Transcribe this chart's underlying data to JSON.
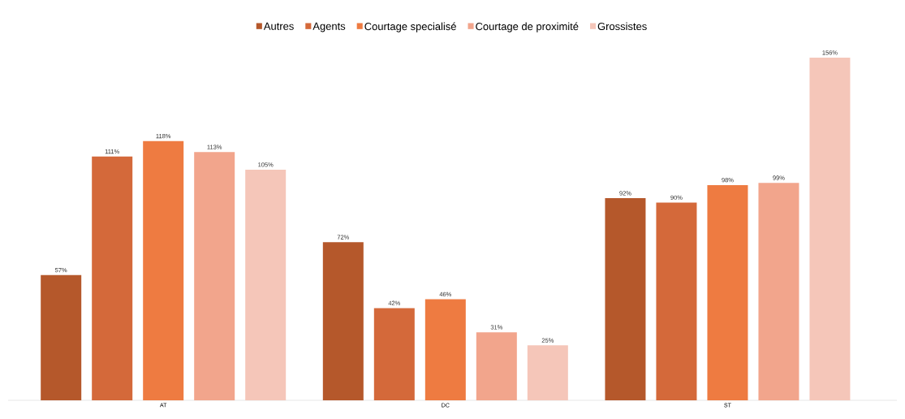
{
  "chart_data": {
    "type": "bar",
    "categories": [
      "AT",
      "DC",
      "ST"
    ],
    "legend": "top",
    "series": [
      {
        "name": "Autres",
        "color": "#b5582b",
        "values": [
          57,
          72,
          92
        ],
        "value_labels": [
          "57%",
          "72%",
          "92%"
        ]
      },
      {
        "name": "Agents",
        "color": "#d4693a",
        "values": [
          111,
          42,
          90
        ],
        "value_labels": [
          "111%",
          "42%",
          "90%"
        ]
      },
      {
        "name": "Courtage specialisé",
        "color": "#ee7b41",
        "values": [
          118,
          46,
          98
        ],
        "value_labels": [
          "118%",
          "46%",
          "98%"
        ]
      },
      {
        "name": "Courtage de proximité",
        "color": "#f2a58c",
        "values": [
          113,
          31,
          99
        ],
        "value_labels": [
          "113%",
          "31%",
          "99%"
        ]
      },
      {
        "name": "Grossistes",
        "color": "#f5c6b9",
        "values": [
          105,
          25,
          156
        ],
        "value_labels": [
          "105%",
          "25%",
          "156%"
        ]
      }
    ]
  }
}
